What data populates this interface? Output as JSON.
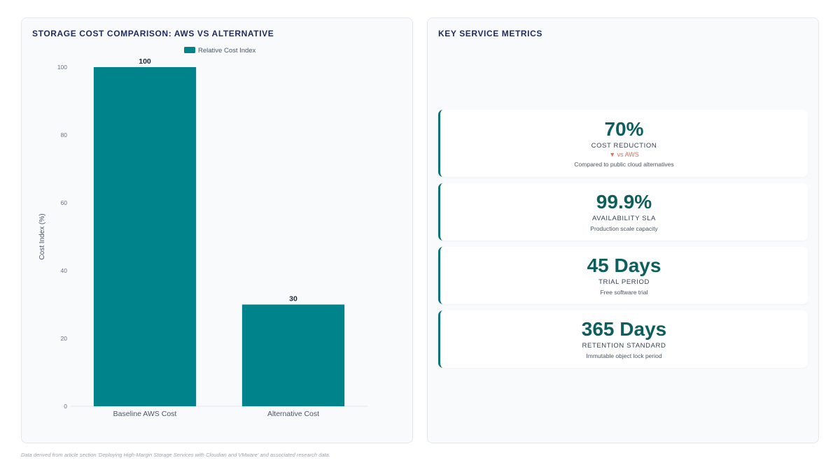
{
  "chart_panel": {
    "title": "STORAGE COST COMPARISON: AWS VS ALTERNATIVE"
  },
  "chart_data": {
    "type": "bar",
    "title": "STORAGE COST COMPARISON: AWS VS ALTERNATIVE",
    "categories": [
      "Baseline AWS Cost",
      "Alternative Cost"
    ],
    "series": [
      {
        "name": "Relative Cost Index",
        "values": [
          100,
          30
        ]
      }
    ],
    "data_labels": [
      "100",
      "30"
    ],
    "xlabel": "",
    "ylabel": "Cost Index (%)",
    "ylim": [
      0,
      100
    ],
    "yticks": [
      0,
      20,
      40,
      60,
      80,
      100
    ],
    "grid": false,
    "legend": "top-center",
    "bar_color": "#00838a"
  },
  "metrics_panel": {
    "title": "KEY SERVICE METRICS",
    "cards": [
      {
        "value": "70%",
        "label": "COST REDUCTION",
        "trend": "▼ vs AWS",
        "description": "Compared to public cloud alternatives"
      },
      {
        "value": "99.9%",
        "label": "AVAILABILITY SLA",
        "description": "Production scale capacity"
      },
      {
        "value": "45 Days",
        "label": "TRIAL PERIOD",
        "description": "Free software trial"
      },
      {
        "value": "365 Days",
        "label": "RETENTION STANDARD",
        "description": "Immutable object lock period"
      }
    ]
  },
  "footnote": "Data derived from article section 'Deploying High-Margin Storage Services with Cloudian and VMware' and associated research data.",
  "colors": {
    "accent": "#0d7377",
    "value_text": "#0f5e5e",
    "title_text": "#1e2a5e",
    "trend_down": "#e26b5a"
  }
}
